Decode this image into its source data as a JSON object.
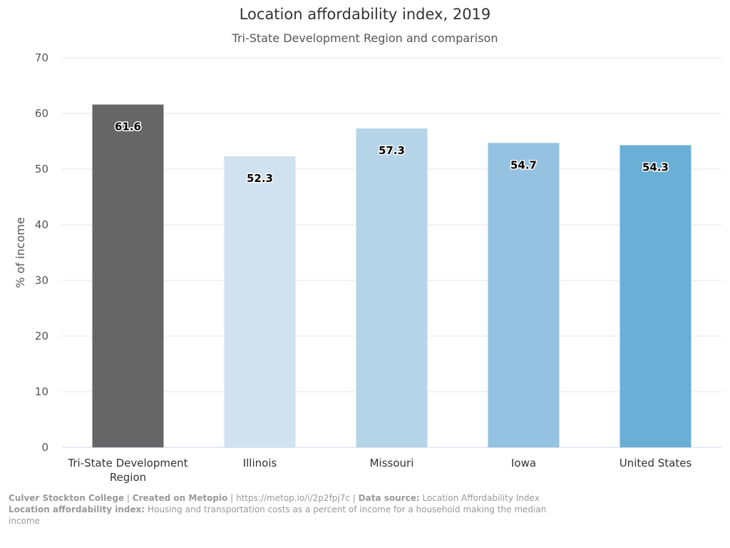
{
  "chart_data": {
    "type": "bar",
    "title": "Location affordability index, 2019",
    "subtitle": "Tri-State Development Region and comparison",
    "ylabel": "% of income",
    "xlabel": "",
    "ylim": [
      0,
      70
    ],
    "yticks": [
      "0",
      "10",
      "20",
      "30",
      "40",
      "50",
      "60",
      "70"
    ],
    "grid": true,
    "categories": [
      "Tri-State Development Region",
      "Illinois",
      "Missouri",
      "Iowa",
      "United States"
    ],
    "category_lines": [
      [
        "Tri-State Development",
        "Region"
      ],
      [
        "Illinois"
      ],
      [
        "Missouri"
      ],
      [
        "Iowa"
      ],
      [
        "United States"
      ]
    ],
    "values": [
      61.6,
      52.3,
      57.3,
      54.7,
      54.3
    ],
    "value_labels": [
      "61.6",
      "52.3",
      "57.3",
      "54.7",
      "54.3"
    ],
    "colors": [
      "#666666",
      "#d0e1f0",
      "#b5d4e8",
      "#95c2e0",
      "#6aafd6"
    ]
  },
  "footer": {
    "org": "Culver Stockton College",
    "sep1": " | ",
    "created_label": "Created on Metopio",
    "sep2": " | https://metop.io/i/2p2fpj7c | ",
    "source_label": "Data source:",
    "source_value": " Location Affordability Index",
    "def_label": "Location affordability index:",
    "def_value": " Housing and transportation costs as a percent of income for a household making the median income"
  }
}
